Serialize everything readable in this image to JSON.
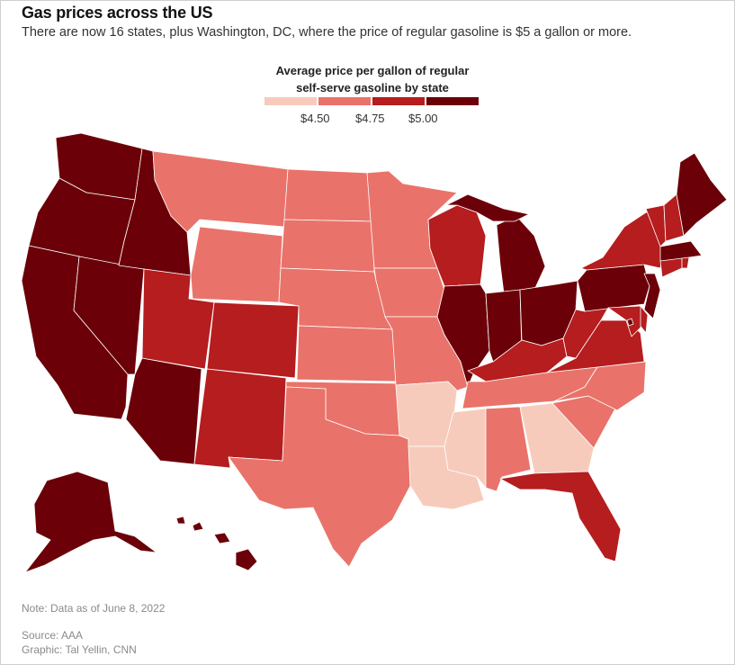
{
  "header": {
    "title": "Gas prices across the US",
    "subtitle": "There are now 16 states, plus Washington, DC, where the price of regular gasoline is $5 a gallon or more."
  },
  "legend": {
    "title_line1": "Average price per gallon of regular",
    "title_line2": "self-serve gasoline by state",
    "ticks": [
      "$4.50",
      "$4.75",
      "$5.00"
    ],
    "colors": [
      "#f7cbbb",
      "#e9736a",
      "#b51d1f",
      "#6b0008"
    ]
  },
  "footer": {
    "note": "Note: Data as of June 8, 2022",
    "source": "Source: AAA",
    "graphic": "Graphic: Tal Yellin, CNN"
  },
  "map_data": {
    "price_tiers": [
      "under $4.50",
      "$4.50–$4.75",
      "$4.75–$5.00",
      "$5.00 or more"
    ],
    "states": {
      "WA": 3,
      "OR": 3,
      "CA": 3,
      "NV": 3,
      "ID": 3,
      "AZ": 3,
      "AK": 3,
      "HI": 3,
      "IL": 3,
      "IN": 3,
      "MI": 3,
      "OH": 3,
      "PA": 3,
      "NJ": 3,
      "MA": 3,
      "ME": 3,
      "DC": 3,
      "UT": 2,
      "CO": 2,
      "NM": 2,
      "WI": 2,
      "KY": 2,
      "WV": 2,
      "VA": 2,
      "MD": 2,
      "DE": 2,
      "NY": 2,
      "VT": 2,
      "NH": 2,
      "CT": 2,
      "RI": 2,
      "FL": 2,
      "MT": 1,
      "WY": 1,
      "ND": 1,
      "SD": 1,
      "NE": 1,
      "KS": 1,
      "MN": 1,
      "IA": 1,
      "MO": 1,
      "OK": 1,
      "TX": 1,
      "TN": 1,
      "NC": 1,
      "SC": 1,
      "AL": 1,
      "AR": 0,
      "LA": 0,
      "MS": 0,
      "GA": 0
    }
  }
}
